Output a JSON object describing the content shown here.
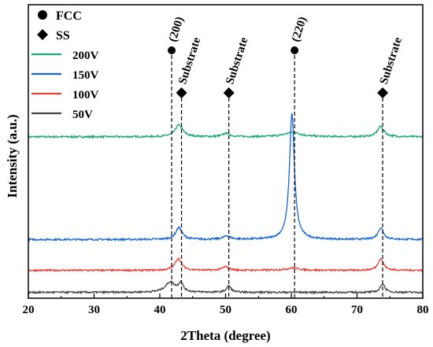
{
  "chart_data": {
    "type": "line",
    "title": "",
    "xlabel": "2Theta (degree)",
    "ylabel": "Intensity (a.u.)",
    "xlim": [
      20,
      80
    ],
    "x_ticks": [
      20,
      30,
      40,
      50,
      60,
      70,
      80
    ],
    "y_ticks_shown": false,
    "grid": false,
    "legend": {
      "placement": "top-left",
      "markers": [
        {
          "label": "FCC",
          "symbol": "circle"
        },
        {
          "label": "SS",
          "symbol": "diamond"
        }
      ],
      "lines": [
        {
          "label": "200V",
          "color": "#1aa874"
        },
        {
          "label": "150V",
          "color": "#1565d8"
        },
        {
          "label": "100V",
          "color": "#e8413c"
        },
        {
          "label": "50V",
          "color": "#444444"
        }
      ]
    },
    "series": [
      {
        "name": "200V",
        "color": "#1aa874",
        "baseline": 0.55,
        "peaks": [
          {
            "x": 42.9,
            "height": 0.04,
            "width": 0.7
          },
          {
            "x": 50.1,
            "height": 0.012,
            "width": 0.6
          },
          {
            "x": 60.2,
            "height": 0.015,
            "width": 1.5
          },
          {
            "x": 73.6,
            "height": 0.035,
            "width": 0.6
          }
        ]
      },
      {
        "name": "150V",
        "color": "#1565d8",
        "baseline": 0.2,
        "peaks": [
          {
            "x": 42.9,
            "height": 0.04,
            "width": 0.6
          },
          {
            "x": 50.2,
            "height": 0.012,
            "width": 0.6
          },
          {
            "x": 60.1,
            "height": 0.43,
            "width": 0.45
          },
          {
            "x": 73.6,
            "height": 0.04,
            "width": 0.5
          }
        ]
      },
      {
        "name": "100V",
        "color": "#e8413c",
        "baseline": 0.095,
        "peaks": [
          {
            "x": 42.8,
            "height": 0.04,
            "width": 0.6
          },
          {
            "x": 50.0,
            "height": 0.012,
            "width": 0.6
          },
          {
            "x": 60.2,
            "height": 0.008,
            "width": 1.2
          },
          {
            "x": 73.6,
            "height": 0.04,
            "width": 0.5
          }
        ]
      },
      {
        "name": "50V",
        "color": "#444444",
        "baseline": 0.02,
        "peaks": [
          {
            "x": 41.6,
            "height": 0.035,
            "width": 0.9
          },
          {
            "x": 43.2,
            "height": 0.03,
            "width": 0.4
          },
          {
            "x": 50.5,
            "height": 0.022,
            "width": 0.4
          },
          {
            "x": 73.9,
            "height": 0.03,
            "width": 0.4
          }
        ]
      }
    ],
    "annotations": [
      {
        "label": "(200)",
        "x": 41.8,
        "symbol": "circle",
        "rotated": true
      },
      {
        "label": "Substrate",
        "x": 43.3,
        "symbol": "diamond",
        "rotated": true
      },
      {
        "label": "Substrate",
        "x": 50.5,
        "symbol": "diamond",
        "rotated": true
      },
      {
        "label": "(220)",
        "x": 60.5,
        "symbol": "circle",
        "rotated": true
      },
      {
        "label": "Substrate",
        "x": 73.9,
        "symbol": "diamond",
        "rotated": true
      }
    ]
  }
}
